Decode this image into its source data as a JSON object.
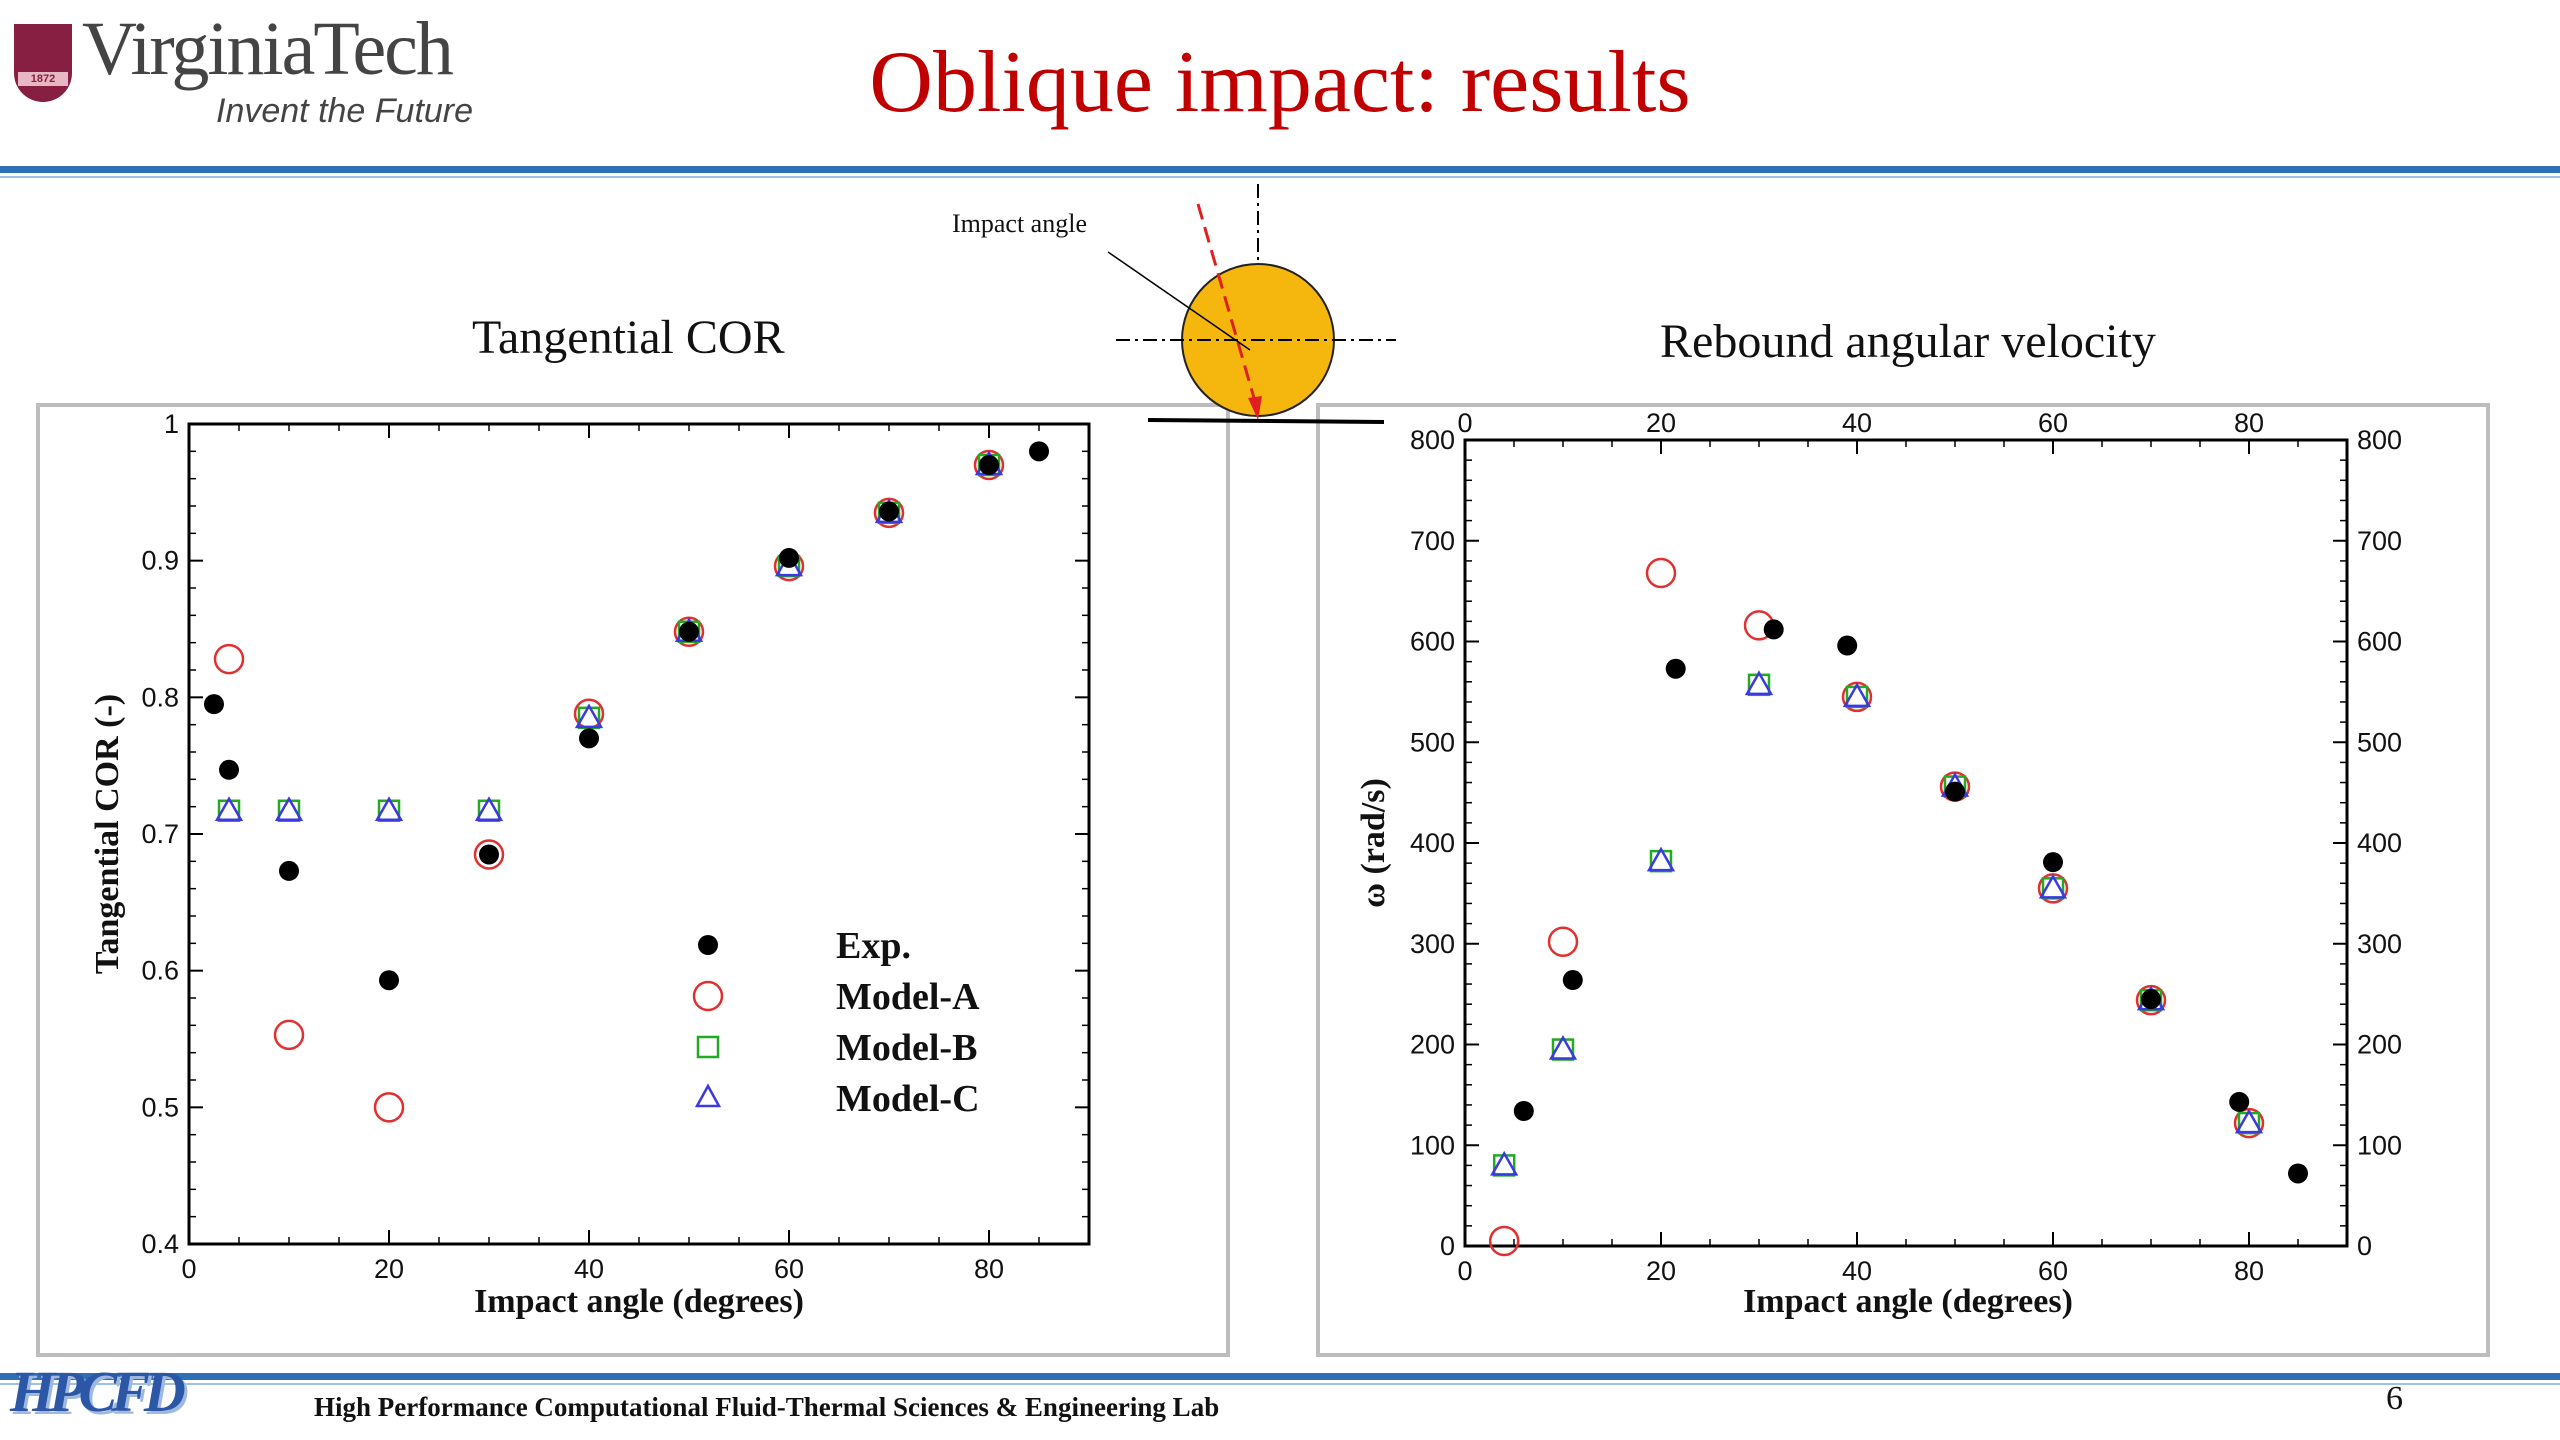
{
  "header": {
    "logo_name": "VirginiaTech",
    "logo_tagline": "Invent the Future",
    "logo_year": "1872",
    "title": "Oblique impact: results"
  },
  "diagram": {
    "label": "Impact angle"
  },
  "footer": {
    "logo_text": "HPCFD",
    "lab_name": "High Performance Computational Fluid-Thermal Sciences & Engineering Lab",
    "page_number": "6"
  },
  "colors": {
    "title_red": "#c00000",
    "rule_blue": "#2f6fb5",
    "exp": "#000000",
    "model_a": "#e03030",
    "model_b": "#22aa22",
    "model_c": "#3a3ae0",
    "ball": "#f5b70d"
  },
  "chart_data": [
    {
      "type": "scatter",
      "title": "Tangential COR",
      "xlabel": "Impact angle (degrees)",
      "ylabel": "Tangential COR (-)",
      "xlim": [
        0,
        90
      ],
      "ylim": [
        0.4,
        1
      ],
      "xticks": [
        "0",
        "20",
        "40",
        "60",
        "80"
      ],
      "yticks": [
        "0.4",
        "0.5",
        "0.6",
        "0.7",
        "0.8",
        "0.9",
        "1"
      ],
      "legend": [
        "Exp.",
        "Model-A",
        "Model-B",
        "Model-C"
      ],
      "legend_position": "bottom-right",
      "grid": false,
      "series": [
        {
          "name": "Exp.",
          "marker": "filled-circle",
          "x": [
            2.5,
            4,
            10,
            20,
            30,
            40,
            50,
            60,
            70,
            80,
            85
          ],
          "y": [
            0.795,
            0.747,
            0.673,
            0.593,
            0.685,
            0.77,
            0.848,
            0.902,
            0.936,
            0.97,
            0.98
          ]
        },
        {
          "name": "Model-A",
          "marker": "open-circle",
          "x": [
            4,
            10,
            20,
            30,
            40,
            50,
            60,
            70,
            80
          ],
          "y": [
            0.828,
            0.553,
            0.5,
            0.685,
            0.788,
            0.848,
            0.896,
            0.935,
            0.97
          ]
        },
        {
          "name": "Model-B",
          "marker": "open-square",
          "x": [
            4,
            10,
            20,
            30,
            40,
            50,
            60,
            70,
            80
          ],
          "y": [
            0.717,
            0.717,
            0.717,
            0.717,
            0.785,
            0.848,
            0.896,
            0.935,
            0.97
          ]
        },
        {
          "name": "Model-C",
          "marker": "open-triangle",
          "x": [
            4,
            10,
            20,
            30,
            40,
            50,
            60,
            70,
            80
          ],
          "y": [
            0.717,
            0.717,
            0.717,
            0.717,
            0.785,
            0.848,
            0.896,
            0.935,
            0.97
          ]
        }
      ]
    },
    {
      "type": "scatter",
      "title": "Rebound angular velocity",
      "xlabel": "Impact angle (degrees)",
      "ylabel": "ω (rad/s)",
      "xlim": [
        0,
        90
      ],
      "ylim": [
        0,
        800
      ],
      "xticks": [
        "0",
        "20",
        "40",
        "60",
        "80"
      ],
      "yticks": [
        "0",
        "100",
        "200",
        "300",
        "400",
        "500",
        "600",
        "700",
        "800"
      ],
      "mirror_axes": true,
      "grid": false,
      "series": [
        {
          "name": "Exp.",
          "marker": "filled-circle",
          "x": [
            6,
            11,
            21.5,
            31.5,
            39,
            50,
            60,
            70,
            79,
            85
          ],
          "y": [
            134,
            264,
            573,
            612,
            596,
            451,
            381,
            245,
            143,
            72
          ]
        },
        {
          "name": "Model-A",
          "marker": "open-circle",
          "x": [
            4,
            10,
            20,
            30,
            40,
            50,
            60,
            70,
            80
          ],
          "y": [
            5,
            302,
            668,
            616,
            545,
            456,
            355,
            244,
            122
          ]
        },
        {
          "name": "Model-B",
          "marker": "open-square",
          "x": [
            4,
            10,
            20,
            30,
            40,
            50,
            60,
            70,
            80
          ],
          "y": [
            80,
            195,
            382,
            557,
            545,
            456,
            355,
            244,
            122
          ]
        },
        {
          "name": "Model-C",
          "marker": "open-triangle",
          "x": [
            4,
            10,
            20,
            30,
            40,
            50,
            60,
            70,
            80
          ],
          "y": [
            80,
            195,
            382,
            557,
            545,
            456,
            355,
            244,
            122
          ]
        }
      ]
    }
  ]
}
